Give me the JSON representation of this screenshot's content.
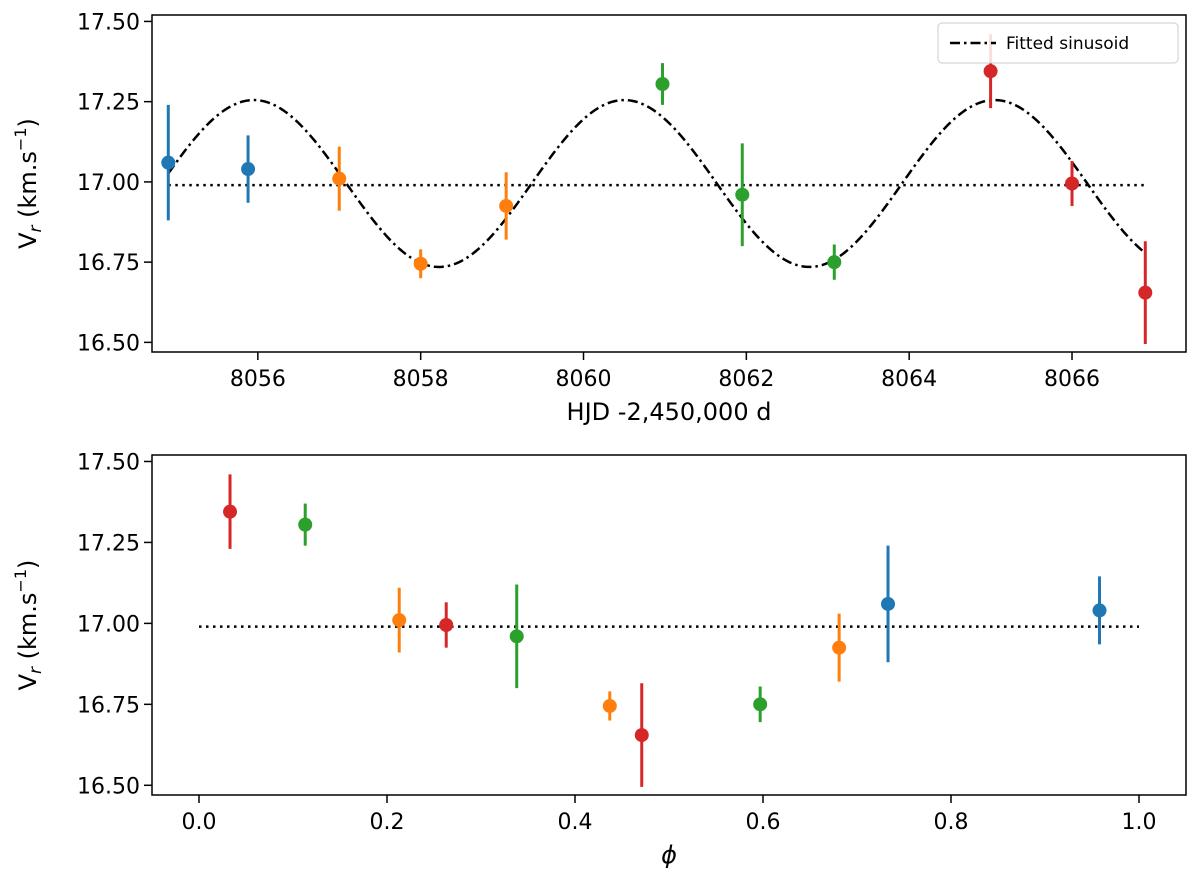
{
  "colors": {
    "blue": "#1f77b4",
    "orange": "#ff7f0e",
    "green": "#2ca02c",
    "red": "#d62728",
    "axis": "#000000"
  },
  "chart_data": [
    {
      "type": "scatter",
      "title": "",
      "xlabel": "HJD -2,450,000 d",
      "ylabel_main": "V",
      "ylabel_sub": "r",
      "ylabel_unit": " (km.s",
      "ylabel_exp": "−1",
      "ylabel_close": ")",
      "xlim": [
        8054.7,
        8067.4
      ],
      "ylim": [
        16.47,
        17.52
      ],
      "xticks": [
        8056,
        8058,
        8060,
        8062,
        8064,
        8066
      ],
      "xtick_labels": [
        "8056",
        "8058",
        "8060",
        "8062",
        "8064",
        "8066"
      ],
      "yticks": [
        16.5,
        16.75,
        17.0,
        17.25,
        17.5
      ],
      "ytick_labels": [
        "16.50",
        "16.75",
        "17.00",
        "17.25",
        "17.50"
      ],
      "legend": {
        "label": "Fitted sinusoid",
        "position": "top-right"
      },
      "mean_line": {
        "y": 16.99,
        "x_range": [
          8054.9,
          8066.9
        ],
        "style": "dotted"
      },
      "sinusoid": {
        "amplitude": 0.26,
        "offset": 16.995,
        "period": 4.55,
        "peak_x": 8055.95,
        "x_range": [
          8054.9,
          8066.9
        ],
        "style": "dashdot"
      },
      "points": [
        {
          "x": 8054.9,
          "y": 17.06,
          "err": 0.18,
          "color": "blue"
        },
        {
          "x": 8055.88,
          "y": 17.04,
          "err": 0.105,
          "color": "blue"
        },
        {
          "x": 8057.0,
          "y": 17.01,
          "err": 0.1,
          "color": "orange"
        },
        {
          "x": 8058.0,
          "y": 16.745,
          "err": 0.045,
          "color": "orange"
        },
        {
          "x": 8059.05,
          "y": 16.925,
          "err": 0.105,
          "color": "orange"
        },
        {
          "x": 8060.97,
          "y": 17.305,
          "err": 0.065,
          "color": "green"
        },
        {
          "x": 8061.95,
          "y": 16.96,
          "err": 0.16,
          "color": "green"
        },
        {
          "x": 8063.08,
          "y": 16.75,
          "err": 0.055,
          "color": "green"
        },
        {
          "x": 8065.0,
          "y": 17.345,
          "err": 0.115,
          "color": "red"
        },
        {
          "x": 8066.0,
          "y": 16.995,
          "err": 0.07,
          "color": "red"
        },
        {
          "x": 8066.9,
          "y": 16.655,
          "err": 0.16,
          "color": "red"
        }
      ]
    },
    {
      "type": "scatter",
      "title": "",
      "xlabel": "ϕ",
      "ylabel_main": "V",
      "ylabel_sub": "r",
      "ylabel_unit": " (km.s",
      "ylabel_exp": "−1",
      "ylabel_close": ")",
      "xlim": [
        -0.05,
        1.05
      ],
      "ylim": [
        16.47,
        17.52
      ],
      "xticks": [
        0.0,
        0.2,
        0.4,
        0.6,
        0.8,
        1.0
      ],
      "xtick_labels": [
        "0.0",
        "0.2",
        "0.4",
        "0.6",
        "0.8",
        "1.0"
      ],
      "yticks": [
        16.5,
        16.75,
        17.0,
        17.25,
        17.5
      ],
      "ytick_labels": [
        "16.50",
        "16.75",
        "17.00",
        "17.25",
        "17.50"
      ],
      "mean_line": {
        "y": 16.99,
        "x_range": [
          0.0,
          1.0
        ],
        "style": "dotted"
      },
      "points": [
        {
          "x": 0.033,
          "y": 17.345,
          "err": 0.115,
          "color": "red"
        },
        {
          "x": 0.113,
          "y": 17.305,
          "err": 0.065,
          "color": "green"
        },
        {
          "x": 0.213,
          "y": 17.01,
          "err": 0.1,
          "color": "orange"
        },
        {
          "x": 0.263,
          "y": 16.995,
          "err": 0.07,
          "color": "red"
        },
        {
          "x": 0.338,
          "y": 16.96,
          "err": 0.16,
          "color": "green"
        },
        {
          "x": 0.437,
          "y": 16.745,
          "err": 0.045,
          "color": "orange"
        },
        {
          "x": 0.471,
          "y": 16.655,
          "err": 0.16,
          "color": "red"
        },
        {
          "x": 0.597,
          "y": 16.75,
          "err": 0.055,
          "color": "green"
        },
        {
          "x": 0.681,
          "y": 16.925,
          "err": 0.105,
          "color": "orange"
        },
        {
          "x": 0.733,
          "y": 17.06,
          "err": 0.18,
          "color": "blue"
        },
        {
          "x": 0.958,
          "y": 17.04,
          "err": 0.105,
          "color": "blue"
        }
      ]
    }
  ]
}
